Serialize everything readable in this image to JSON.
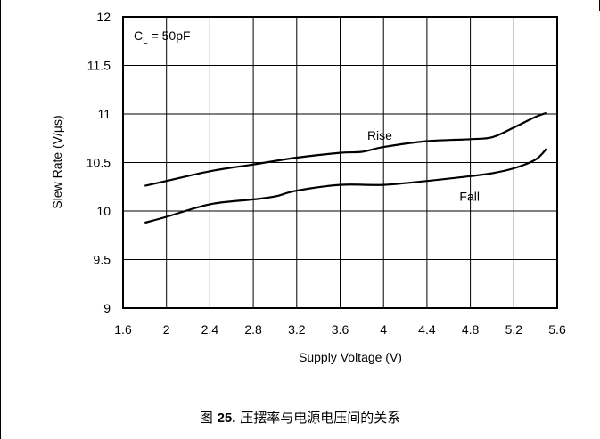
{
  "chart_data": {
    "type": "line",
    "xlabel": "Supply Voltage (V)",
    "ylabel": "Slew Rate (V/µs)",
    "xlim": [
      1.6,
      5.6
    ],
    "ylim": [
      9,
      12
    ],
    "x_ticks": [
      "1.6",
      "2",
      "2.4",
      "2.8",
      "3.2",
      "3.6",
      "4",
      "4.4",
      "4.8",
      "5.2",
      "5.6"
    ],
    "y_ticks": [
      "9",
      "9.5",
      "10",
      "10.5",
      "11",
      "11.5",
      "12"
    ],
    "grid": true,
    "annotation": {
      "main": "C",
      "sub": "L",
      "rest": " = 50pF"
    },
    "series": [
      {
        "name": "Rise",
        "x": [
          1.8,
          2.0,
          2.4,
          2.8,
          3.2,
          3.6,
          3.8,
          4.0,
          4.4,
          4.8,
          5.0,
          5.2,
          5.4,
          5.5
        ],
        "y": [
          10.26,
          10.31,
          10.41,
          10.48,
          10.55,
          10.6,
          10.61,
          10.66,
          10.72,
          10.74,
          10.76,
          10.86,
          10.97,
          11.01
        ]
      },
      {
        "name": "Fall",
        "x": [
          1.8,
          2.0,
          2.4,
          2.8,
          3.0,
          3.2,
          3.6,
          4.0,
          4.4,
          4.8,
          5.0,
          5.2,
          5.4,
          5.5
        ],
        "y": [
          9.88,
          9.94,
          10.07,
          10.12,
          10.15,
          10.21,
          10.27,
          10.27,
          10.31,
          10.36,
          10.39,
          10.44,
          10.53,
          10.64
        ]
      }
    ],
    "series_label_positions": {
      "Rise": {
        "x": 3.85,
        "y": 10.78
      },
      "Fall": {
        "x": 4.7,
        "y": 10.15
      }
    }
  },
  "caption": {
    "prefix": "图 ",
    "number": "25.",
    "text": " 压摆率与电源电压间的关系"
  },
  "colors": {
    "line": "#000000",
    "grid": "#000000"
  }
}
